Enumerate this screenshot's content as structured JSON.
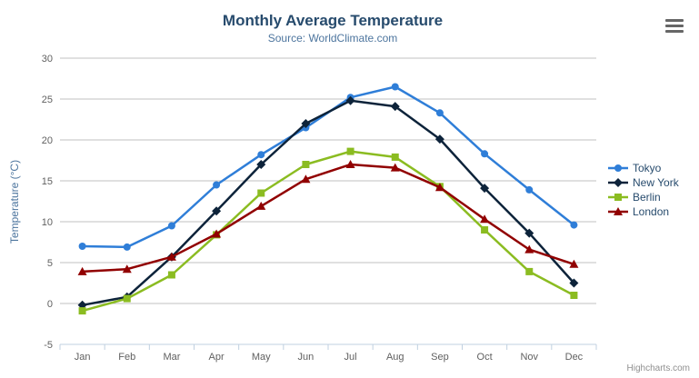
{
  "chart_data": {
    "type": "line",
    "title": "Monthly Average Temperature",
    "subtitle": "Source: WorldClimate.com",
    "categories": [
      "Jan",
      "Feb",
      "Mar",
      "Apr",
      "May",
      "Jun",
      "Jul",
      "Aug",
      "Sep",
      "Oct",
      "Nov",
      "Dec"
    ],
    "xlabel": "",
    "ylabel": "Temperature (°C)",
    "ylim": [
      -5,
      30
    ],
    "ytick_interval": 5,
    "grid": true,
    "legend_position": "right",
    "series": [
      {
        "name": "Tokyo",
        "color": "#2f7ed8",
        "marker": "circle",
        "values": [
          7.0,
          6.9,
          9.5,
          14.5,
          18.2,
          21.5,
          25.2,
          26.5,
          23.3,
          18.3,
          13.9,
          9.6
        ]
      },
      {
        "name": "New York",
        "color": "#0d233a",
        "marker": "diamond",
        "values": [
          -0.2,
          0.8,
          5.7,
          11.3,
          17.0,
          22.0,
          24.8,
          24.1,
          20.1,
          14.1,
          8.6,
          2.5
        ]
      },
      {
        "name": "Berlin",
        "color": "#8bbc21",
        "marker": "square",
        "values": [
          -0.9,
          0.6,
          3.5,
          8.4,
          13.5,
          17.0,
          18.6,
          17.9,
          14.3,
          9.0,
          3.9,
          1.0
        ]
      },
      {
        "name": "London",
        "color": "#910000",
        "marker": "triangle",
        "values": [
          3.9,
          4.2,
          5.7,
          8.5,
          11.9,
          15.2,
          17.0,
          16.6,
          14.2,
          10.3,
          6.6,
          4.8
        ]
      }
    ]
  },
  "credits": {
    "label": "Highcharts.com"
  },
  "export_button": {
    "icon": "hamburger-icon"
  },
  "colors": {
    "title": "#274b6d",
    "subtitle": "#4d759e",
    "axis_title": "#4d759e",
    "axis_label": "#606060",
    "grid_line": "#c0c0c0",
    "axis_line": "#c0d0e0",
    "legend_text": "#274b6d",
    "credits_text": "#8f8f8f",
    "export_icon": "#666666"
  }
}
